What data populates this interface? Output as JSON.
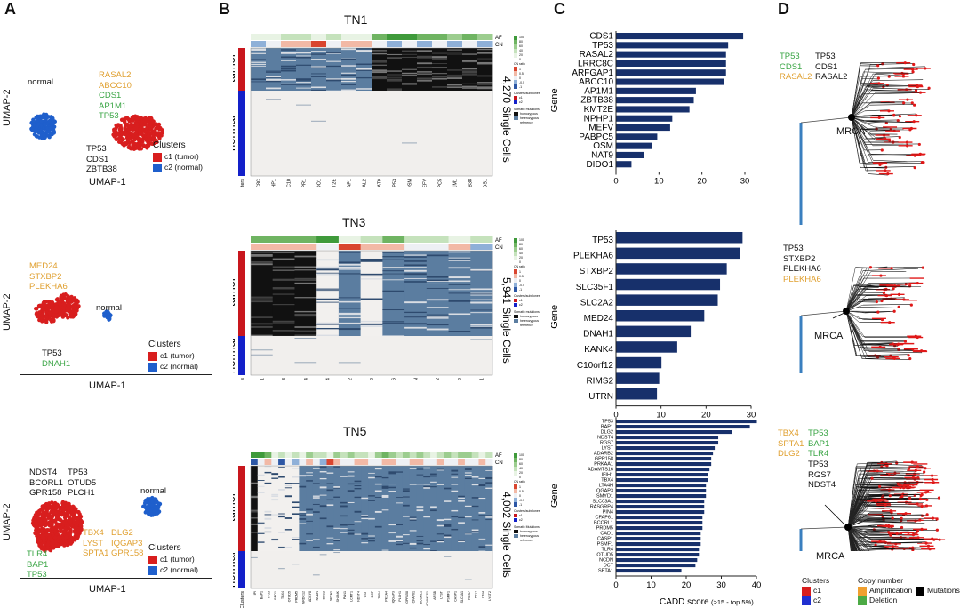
{
  "panels": {
    "A": "A",
    "B": "B",
    "C": "C",
    "D": "D"
  },
  "panelA": {
    "xlabel": "UMAP-1",
    "ylabel": "UMAP-2",
    "clusters_title": "Clusters",
    "c1": "c1 (tumor)",
    "c2": "c2 (normal)",
    "normal": "normal",
    "colors": {
      "tumor": "#d81e1e",
      "normal": "#1f5fcc",
      "orange": "#e0a030",
      "green": "#3aa545"
    },
    "p1": {
      "orange": [
        "RASAL2",
        "ABCC10"
      ],
      "green": [
        "CDS1",
        "AP1M1",
        "TP53"
      ],
      "black": [
        "TP53",
        "CDS1",
        "ZBTB38"
      ]
    },
    "p2": {
      "orange": [
        "MED24",
        "STXBP2",
        "PLEKHA6"
      ],
      "black": [
        "TP53"
      ],
      "green": [
        "DNAH1"
      ]
    },
    "p3": {
      "black_left": [
        "NDST4",
        "BCORL1",
        "GPR158"
      ],
      "black_right": [
        "TP53",
        "OTUD5",
        "PLCH1"
      ],
      "orange1": [
        "TBX4",
        "LYST",
        "SPTA1"
      ],
      "orange2": [
        "DLG2",
        "IQGAP3",
        "GPR158"
      ],
      "green": [
        "TLR4",
        "BAP1",
        "TP53"
      ]
    }
  },
  "panelB": {
    "titles": [
      "TN1",
      "TN3",
      "TN5"
    ],
    "cells": [
      "4,270 Single Cells",
      "5,941 Single Cells",
      "4,002 Single Cells"
    ],
    "tumor": "tumor",
    "normal": "normal",
    "af": "AF",
    "cn": "CN",
    "clusters": "Clusters",
    "legend": {
      "af_ticks": [
        "100",
        "80",
        "60",
        "40",
        "20",
        "0"
      ],
      "cn_title": "CN ratio",
      "cn_ticks": [
        "1",
        "0.5",
        "0",
        "-0.5",
        "-1"
      ],
      "clusters_title": "Clusters/subclones",
      "c1": "c1",
      "c2": "c2",
      "mut_title": "Somatic mutations",
      "hom": "homozygous",
      "het": "heterozygous",
      "ref": "reference",
      "mut_title3": "Somatic Mutations"
    },
    "tn1_genes": [
      "LRRC8C",
      "NPHP1",
      "ABCC10",
      "TECPR1",
      "DIDO1",
      "KMT2E",
      "ARFGAP1",
      "RASAL2",
      "NAT9",
      "TP53",
      "OSM",
      "MEFV",
      "PABPC5",
      "AP1M1",
      "ZBTB38",
      "CDS1"
    ],
    "tn3_genes": [
      "DNAH1",
      "TP53",
      "KANK4",
      "MED24",
      "RIMS2",
      "C10orf12",
      "PLEKHA6",
      "UTRN",
      "STXBP2",
      "SLC2A2",
      "SLC35F1"
    ],
    "tn5_genes": [
      "IPI",
      "BAP1",
      "TP53",
      "BRD1",
      "TBX4",
      "OTUD5",
      "PRDM5",
      "NRDC12",
      "ADCY8",
      "NCDN",
      "DLG2",
      "SPTA1",
      "SHANK",
      "PAN1",
      "LCMT1",
      "NDST4",
      "CST",
      "DCT",
      "TLR4",
      "PKXA4",
      "IQGAP3",
      "PLCH1",
      "GPR158",
      "CFAP61",
      "BCORL1",
      "ADAMTS1",
      "ARSB",
      "LYST",
      "PSMF1",
      "CASP1",
      "SLC3A1",
      "RGS7",
      "PIN4",
      "ITN4",
      "LYST2"
    ]
  },
  "panelC": {
    "ylabel": "Gene",
    "xlabel": "CADD score",
    "xnote": "(>15 - top 5%)",
    "bar_color": "#17306b"
  },
  "panelD": {
    "mrca": "MRCA",
    "t1": {
      "green": [
        "TP53",
        "CDS1"
      ],
      "orange": [
        "RASAL2"
      ],
      "black": [
        "TP53",
        "CDS1",
        "RASAL2"
      ]
    },
    "t2": {
      "black": [
        "TP53",
        "STXBP2",
        "PLEKHA6"
      ],
      "orange": [
        "PLEKHA6"
      ]
    },
    "t3": {
      "orange": [
        "TBX4",
        "SPTA1",
        "DLG2"
      ],
      "green": [
        "TP53",
        "BAP1",
        "TLR4"
      ],
      "black": [
        "TP53",
        "RGS7",
        "NDST4"
      ]
    },
    "legend": {
      "clusters": "Clusters",
      "c1": "c1",
      "c2": "c2",
      "copy": "Copy number",
      "amp": "Amplification",
      "del": "Deletion",
      "mut": "Mutations"
    }
  },
  "chart_data": [
    {
      "type": "bar",
      "orientation": "horizontal",
      "title": "",
      "xlabel": "",
      "ylabel": "Gene",
      "categories": [
        "CDS1",
        "TP53",
        "RASAL2",
        "LRRC8C",
        "ARFGAP1",
        "ABCC10",
        "AP1M1",
        "ZBTB38",
        "KMT2E",
        "NPHP1",
        "MEFV",
        "PABPC5",
        "OSM",
        "NAT9",
        "DIDO1"
      ],
      "values": [
        29.5,
        26,
        25.5,
        25.5,
        25.5,
        25,
        18.5,
        18,
        17,
        13,
        12.5,
        9.5,
        8.2,
        6.5,
        3.5
      ],
      "xlim": [
        0,
        30
      ],
      "xticks": [
        "0",
        "10",
        "20",
        "30"
      ]
    },
    {
      "type": "bar",
      "orientation": "horizontal",
      "title": "",
      "xlabel": "",
      "ylabel": "Gene",
      "categories": [
        "TP53",
        "PLEKHA6",
        "STXBP2",
        "SLC35F1",
        "SLC2A2",
        "MED24",
        "DNAH1",
        "KANK4",
        "C10orf12",
        "RIMS2",
        "UTRN"
      ],
      "values": [
        28,
        27.5,
        24.5,
        23,
        22.5,
        19.5,
        16.5,
        13.5,
        10,
        9.5,
        9
      ],
      "xlim": [
        0,
        30
      ],
      "xticks": [
        "0",
        "10",
        "20",
        "30"
      ]
    },
    {
      "type": "bar",
      "orientation": "horizontal",
      "title": "",
      "xlabel": "CADD score",
      "ylabel": "Gene",
      "categories": [
        "TP53",
        "BAP1",
        "DLG2",
        "NDST4",
        "RGS7",
        "LYST",
        "ADARB2",
        "GPR158",
        "PRKAA1",
        "ADAMTS16",
        "IFIH1",
        "TBX4",
        "LTA4H",
        "IQGAP3",
        "SMYD1",
        "SLC03A1",
        "RASGRP4",
        "PIN4",
        "CFAP61",
        "BCORL1",
        "PRDM5",
        "CAD1",
        "CASP1",
        "PSMF1",
        "TLR4",
        "OTUD5",
        "NCDN",
        "DCT",
        "SPTA1"
      ],
      "values": [
        40,
        38,
        33,
        29,
        29,
        28,
        27.5,
        27,
        27,
        26.5,
        26,
        26,
        25.5,
        25.5,
        25.5,
        25,
        25,
        25,
        24.5,
        24.5,
        24.5,
        24,
        24,
        24,
        23.5,
        23.5,
        23,
        22.5,
        18.5
      ],
      "xlim": [
        0,
        40
      ],
      "xticks": [
        "0",
        "10",
        "20",
        "30",
        "40"
      ]
    }
  ]
}
